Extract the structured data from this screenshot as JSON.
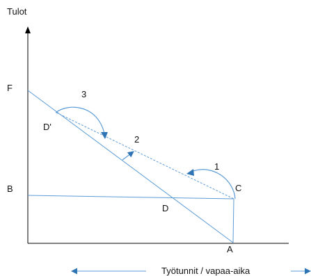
{
  "diagram": {
    "y_axis_title": "Tulot",
    "x_axis_title": "Työtunnit / vapaa-aika",
    "points": {
      "F": "F",
      "B": "B",
      "A": "A",
      "C": "C",
      "D": "D",
      "D_prime": "D'"
    },
    "steps": {
      "one": "1",
      "two": "2",
      "three": "3"
    },
    "colors": {
      "line": "#5b9bd5",
      "axis": "#000000",
      "arrow_accent": "#2e75b6",
      "text": "#111111"
    }
  }
}
